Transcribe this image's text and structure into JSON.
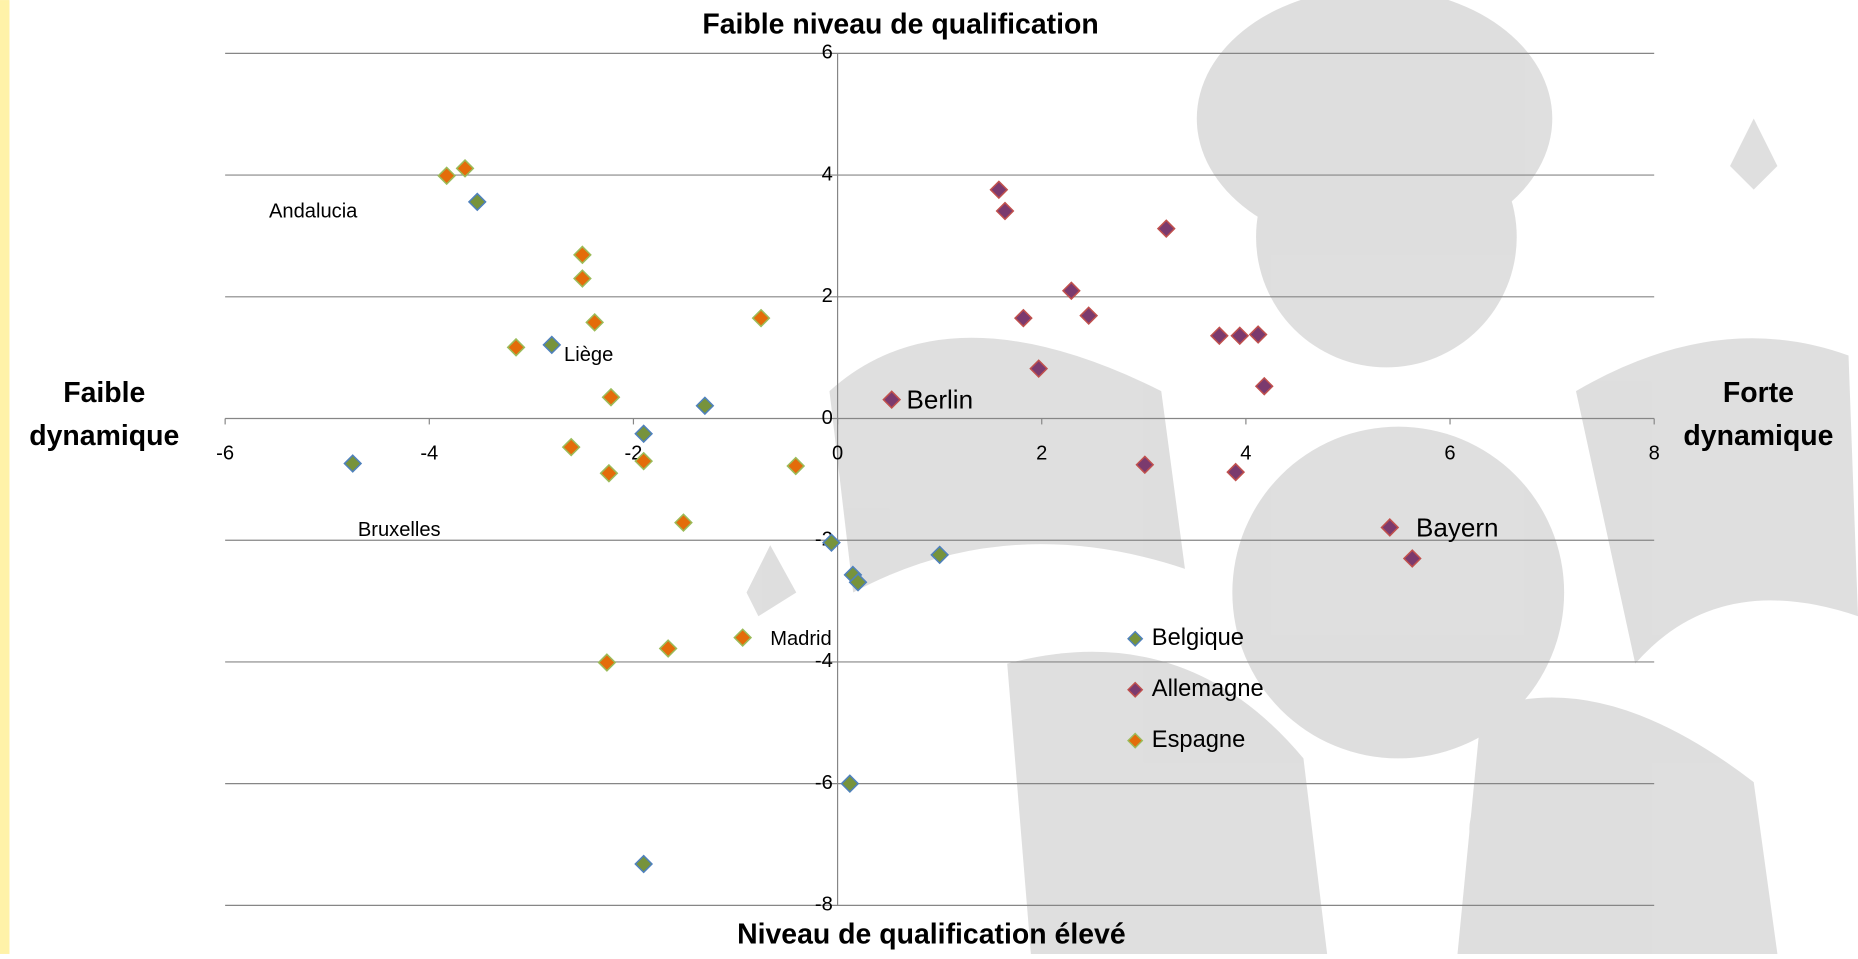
{
  "chart_data": {
    "type": "scatter",
    "title_top": "Faible niveau de qualification",
    "title_bottom": "Niveau de qualification élevé",
    "label_left": [
      "Faible",
      "dynamique"
    ],
    "label_right": [
      "Forte",
      "dynamique"
    ],
    "xlim": [
      -6,
      8
    ],
    "ylim": [
      -8,
      6
    ],
    "xticks": [
      -6,
      -4,
      -2,
      0,
      2,
      4,
      6,
      8
    ],
    "yticks": [
      -8,
      -6,
      -4,
      -2,
      0,
      2,
      4,
      6
    ],
    "grid": true,
    "series": [
      {
        "name": "Belgique",
        "color": "#77933c",
        "edge": "#4f81bd",
        "x": [
          -4.75,
          -3.53,
          -2.8,
          -1.3,
          -1.9,
          -0.06,
          1.0,
          0.15,
          0.2,
          0.12,
          -1.9
        ],
        "values": [
          -0.74,
          3.56,
          1.21,
          0.21,
          -0.25,
          -2.04,
          -2.24,
          -2.57,
          -2.69,
          -6.0,
          -7.32
        ]
      },
      {
        "name": "Allemagne",
        "color": "#7b3a6e",
        "edge": "#c0504d",
        "x": [
          1.58,
          1.64,
          3.22,
          2.29,
          1.82,
          2.46,
          1.97,
          3.74,
          3.94,
          4.12,
          4.18,
          0.53,
          3.01,
          3.9,
          5.41,
          5.63
        ],
        "values": [
          3.76,
          3.41,
          3.12,
          2.1,
          1.65,
          1.69,
          0.82,
          1.36,
          1.36,
          1.38,
          0.53,
          0.31,
          -0.76,
          -0.88,
          -1.79,
          -2.3
        ]
      },
      {
        "name": "Espagne",
        "color": "#e46c0a",
        "edge": "#9bbb59",
        "x": [
          -3.83,
          -3.65,
          -2.5,
          -2.5,
          -2.38,
          -3.15,
          -0.75,
          -2.22,
          -2.61,
          -2.24,
          -1.9,
          -0.41,
          -1.51,
          -0.93,
          -1.66,
          -2.26
        ],
        "values": [
          3.99,
          4.11,
          2.69,
          2.3,
          1.58,
          1.17,
          1.65,
          0.35,
          -0.47,
          -0.9,
          -0.7,
          -0.78,
          -1.71,
          -3.6,
          -3.78,
          -4.01
        ]
      }
    ],
    "annotations": [
      "Andalucia",
      "Liège",
      "Bruxelles",
      "Madrid",
      "Berlin",
      "Bayern"
    ]
  }
}
